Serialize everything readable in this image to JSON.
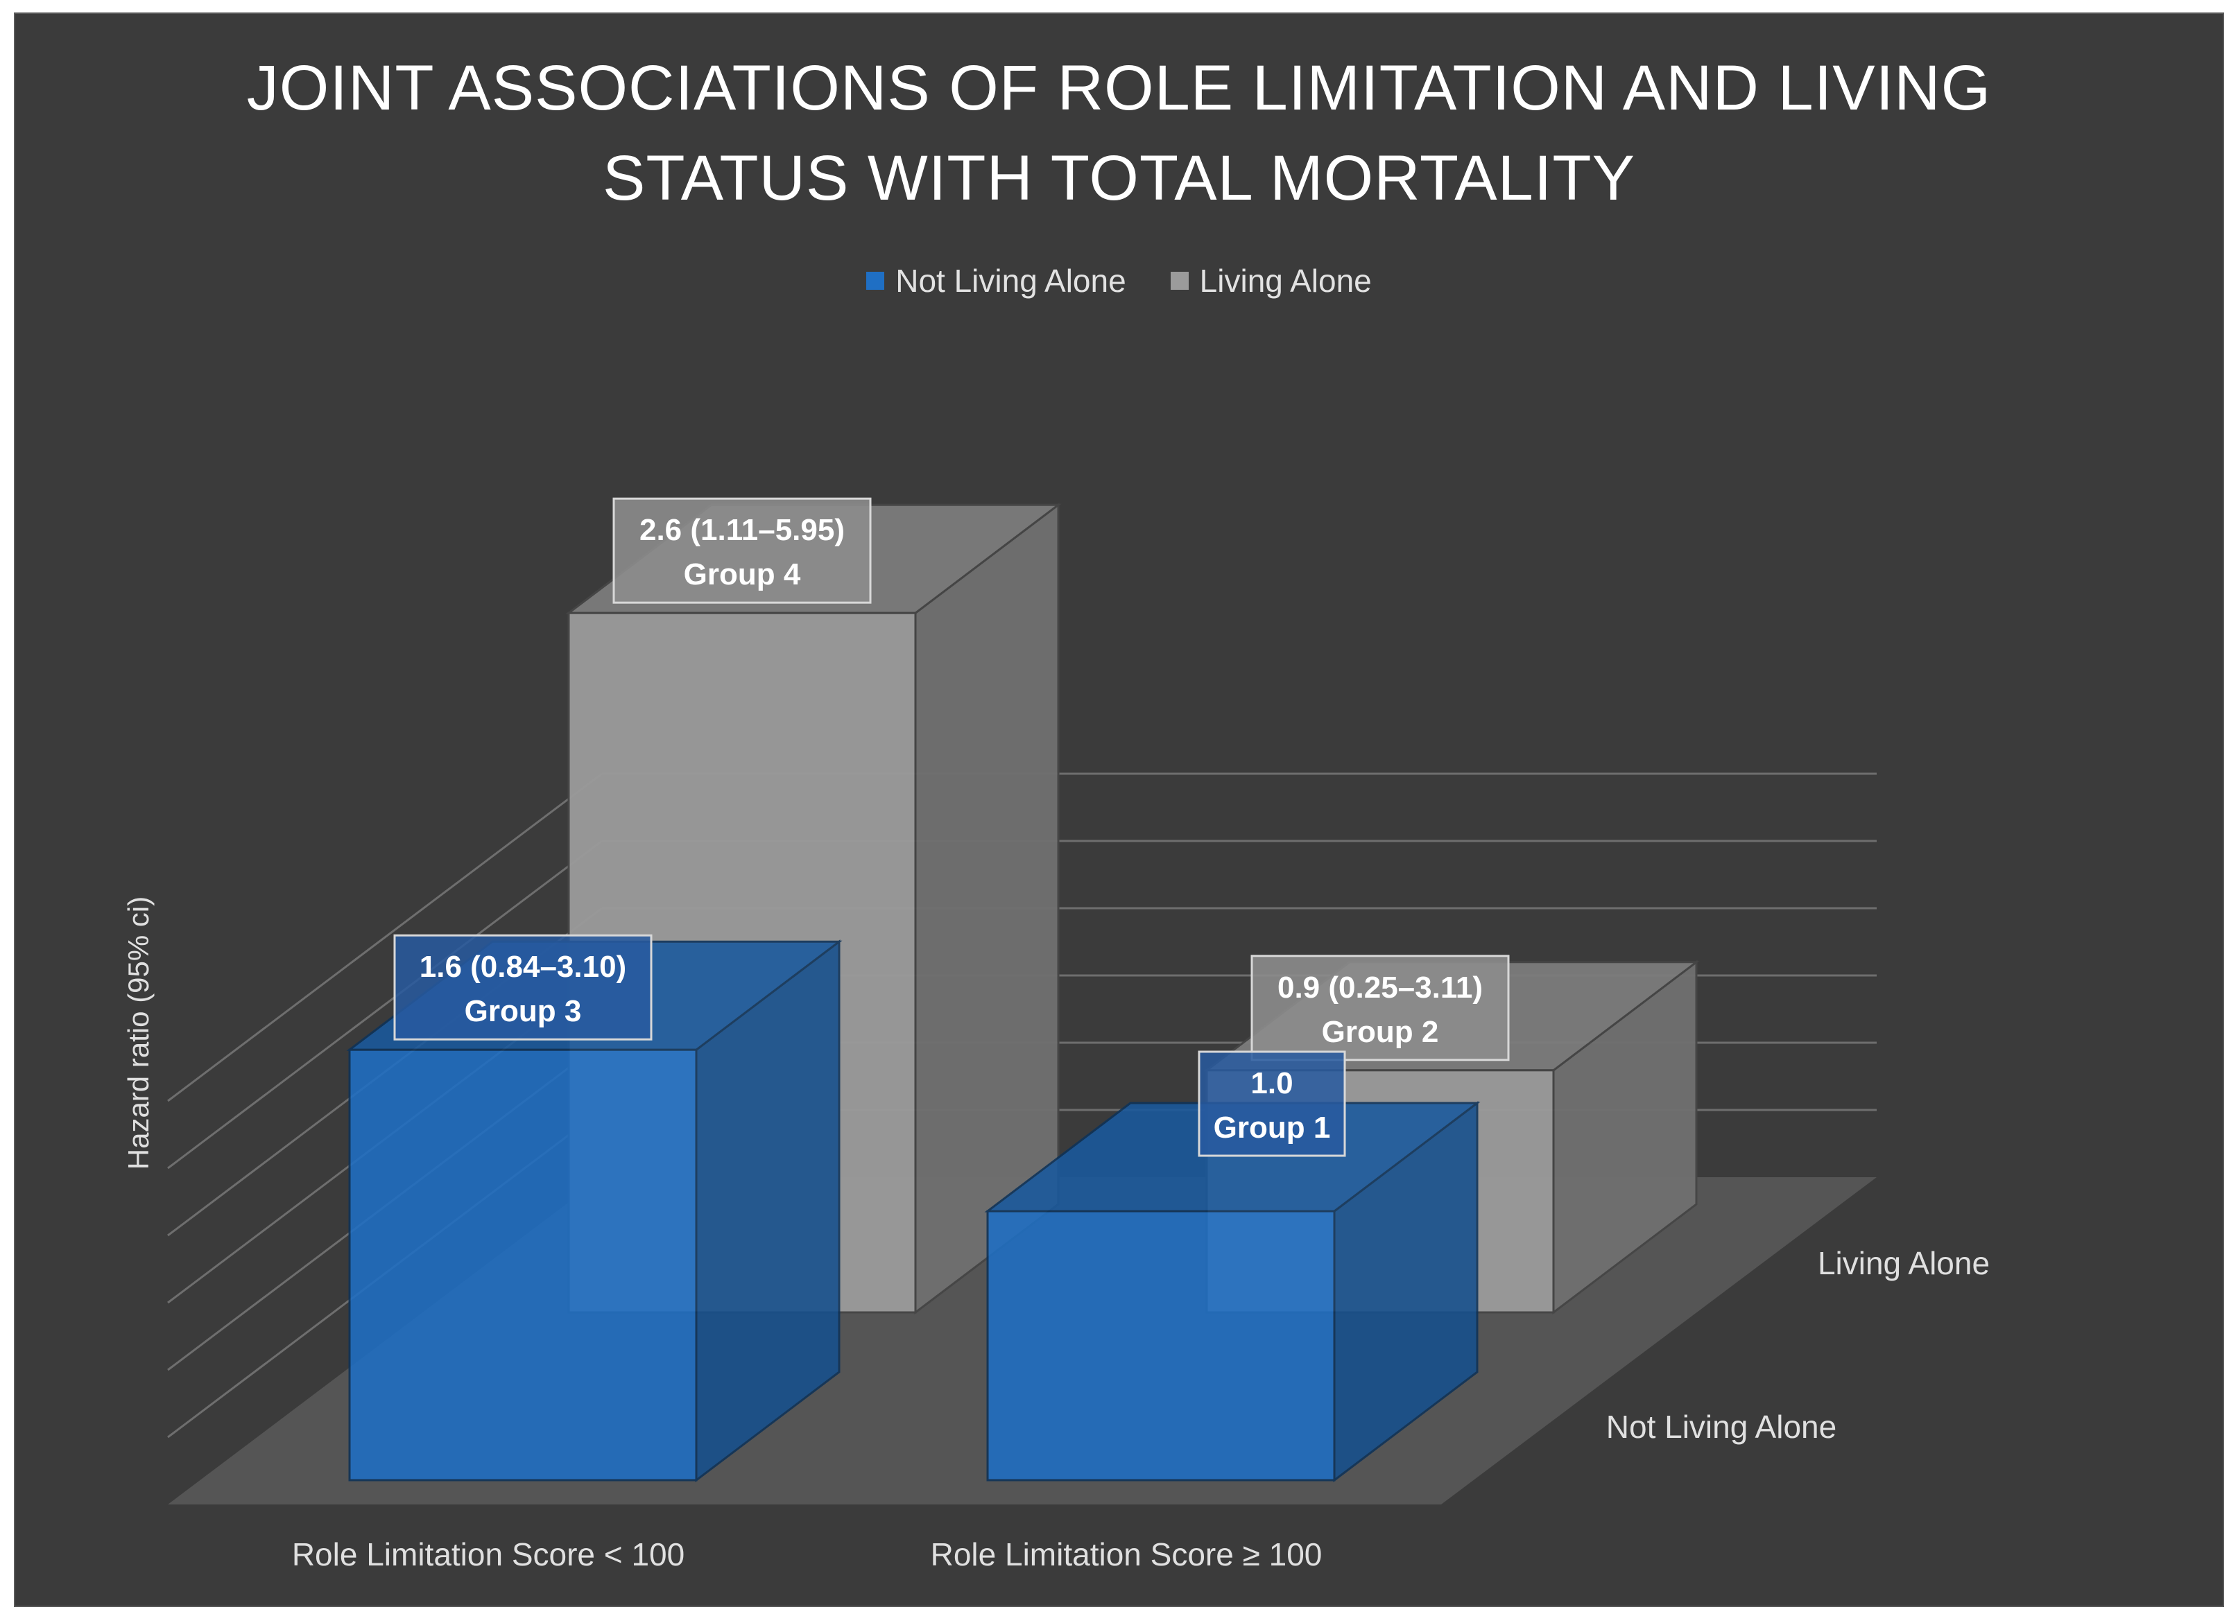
{
  "chart_data": {
    "type": "bar",
    "subtype": "3d-clustered-column",
    "title": [
      "JOINT ASSOCIATIONS OF ROLE LIMITATION AND LIVING",
      "STATUS WITH TOTAL MORTALITY"
    ],
    "xlabel": "",
    "ylabel": "Hazard ratio (95% ci)",
    "categories": [
      "Role Limitation Score < 100",
      "Role Limitation Score ≥ 100"
    ],
    "depth_labels": [
      "Living Alone",
      "Not Living Alone"
    ],
    "ylim": [
      0,
      3.0
    ],
    "grid": true,
    "legend_position": "top-center",
    "series": [
      {
        "name": "Not Living Alone",
        "color": "#1f6fc4",
        "values": [
          1.6,
          1.0
        ],
        "labels": [
          {
            "value": "1.6 (0.84–3.10)",
            "group": "Group 3"
          },
          {
            "value": "1.0",
            "group": "Group 1"
          }
        ]
      },
      {
        "name": "Living Alone",
        "color": "#9b9b9b",
        "values": [
          2.6,
          0.9
        ],
        "labels": [
          {
            "value": "2.6 (1.11–5.95)",
            "group": "Group 4"
          },
          {
            "value": "0.9 (0.25–3.11)",
            "group": "Group 2"
          }
        ]
      }
    ]
  }
}
